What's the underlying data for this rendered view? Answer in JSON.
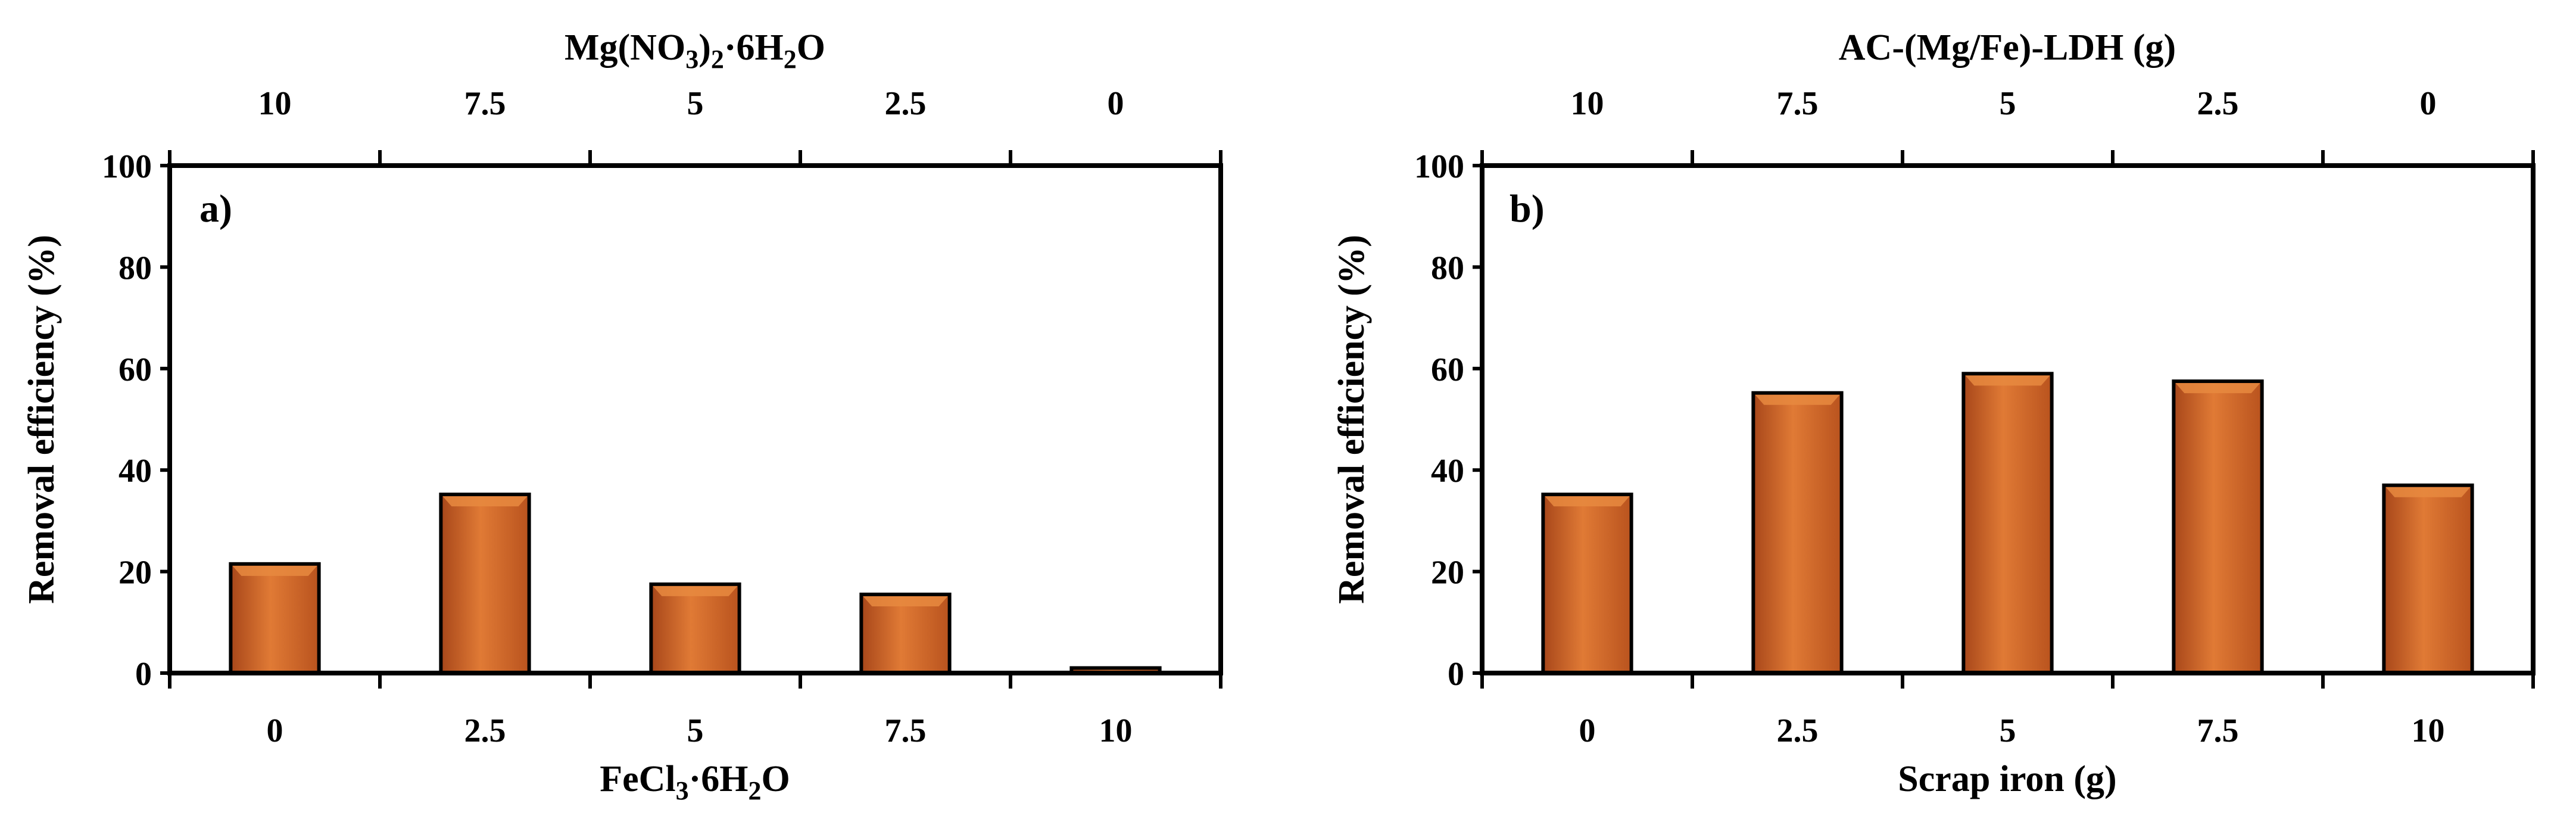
{
  "colors": {
    "bar_fill": "#C8591C",
    "bar_highlight": "#E8893F",
    "bar_shade": "#8E3A10",
    "bar_outline": "#000000",
    "axis": "#000000"
  },
  "chart_data": [
    {
      "type": "bar",
      "panel_label": "a)",
      "bottom_categories": [
        "0",
        "2.5",
        "5",
        "7.5",
        "10"
      ],
      "top_categories": [
        "10",
        "7.5",
        "5",
        "2.5",
        "0"
      ],
      "values": [
        21.5,
        35.2,
        17.5,
        15.5,
        1.0
      ],
      "xlabel_main": "FeCl",
      "xlabel_sub1": "3",
      "xlabel_mid": "·6H",
      "xlabel_sub2": "2",
      "xlabel_end": "O",
      "top_xlabel_main": "Mg(NO",
      "top_xlabel_sub1": "3",
      "top_xlabel_mid": ")",
      "top_xlabel_sub2": "2",
      "top_xlabel_mid2": "·6H",
      "top_xlabel_sub3": "2",
      "top_xlabel_end": "O",
      "ylabel": "Removal efficiency (%)",
      "ylim": [
        0,
        100
      ],
      "yticks": [
        "0",
        "20",
        "40",
        "60",
        "80",
        "100"
      ],
      "grid": false,
      "legend": "none"
    },
    {
      "type": "bar",
      "panel_label": "b)",
      "bottom_categories": [
        "0",
        "2.5",
        "5",
        "7.5",
        "10"
      ],
      "top_categories": [
        "10",
        "7.5",
        "5",
        "2.5",
        "0"
      ],
      "values": [
        35.2,
        55.2,
        59.0,
        57.5,
        37.0
      ],
      "xlabel": "Scrap iron (g)",
      "top_xlabel": "AC-(Mg/Fe)-LDH (g)",
      "ylabel": "Removal efficiency (%)",
      "ylim": [
        0,
        100
      ],
      "yticks": [
        "0",
        "20",
        "40",
        "60",
        "80",
        "100"
      ],
      "grid": false,
      "legend": "none"
    }
  ]
}
